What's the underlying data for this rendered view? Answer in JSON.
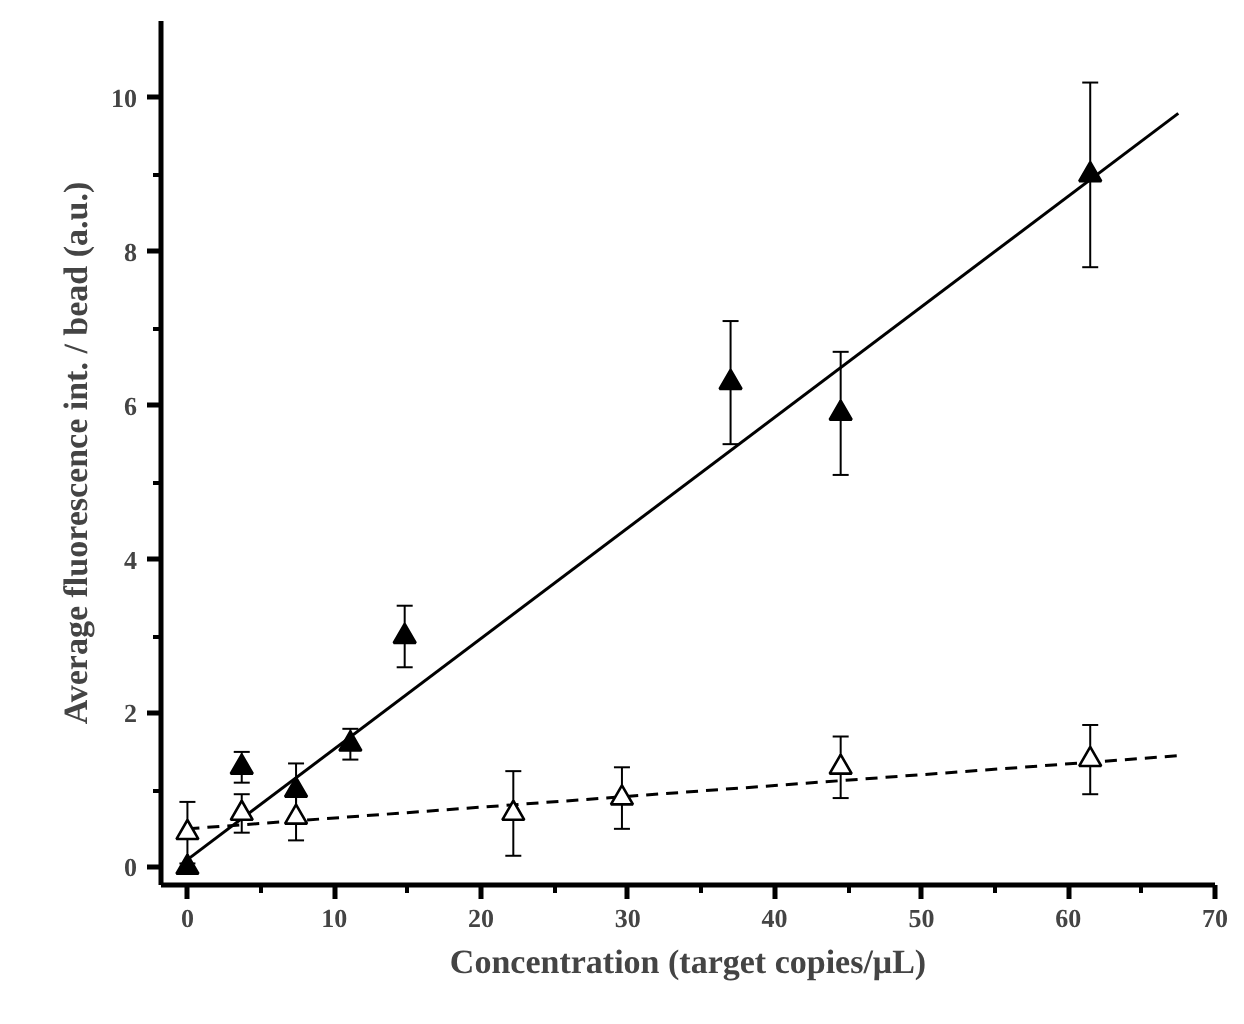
{
  "chart_data": {
    "type": "scatter",
    "xlabel": "Concentration (target copies/μL)",
    "ylabel": "Average fluorescence int. / bead (a.u.)",
    "xlim": [
      -1.8,
      70
    ],
    "ylim": [
      -0.23,
      11
    ],
    "xticks": [
      0,
      10,
      20,
      30,
      40,
      50,
      60,
      70
    ],
    "yticks": [
      0,
      2,
      4,
      6,
      8,
      10
    ],
    "grid": false,
    "series": [
      {
        "marker": "triangle",
        "color": "#000000",
        "x": [
          0,
          3.7,
          7.4,
          11.1,
          14.8,
          37,
          44.5,
          61.5
        ],
        "values": [
          0.0,
          1.3,
          1.0,
          1.6,
          3.0,
          6.3,
          5.9,
          9.0
        ],
        "errors": [
          null,
          0.2,
          0.35,
          0.2,
          0.4,
          0.8,
          0.8,
          1.2
        ]
      },
      {
        "marker": "triangle",
        "color": "#000000",
        "x": [
          0,
          3.7,
          7.4,
          22.2,
          29.6,
          44.5,
          61.5
        ],
        "values": [
          0.45,
          0.7,
          0.65,
          0.7,
          0.9,
          1.3,
          1.4
        ],
        "errors": [
          0.4,
          0.25,
          0.3,
          0.55,
          0.4,
          0.4,
          0.45
        ]
      },
      {
        "type": "line",
        "line_style": "solid",
        "color": "#000000",
        "x": [
          0,
          67.5
        ],
        "values": [
          0.1,
          9.8
        ]
      },
      {
        "type": "line",
        "line_style": "dashed",
        "color": "#000000",
        "x": [
          0,
          67.5
        ],
        "values": [
          0.5,
          1.45
        ]
      }
    ]
  }
}
